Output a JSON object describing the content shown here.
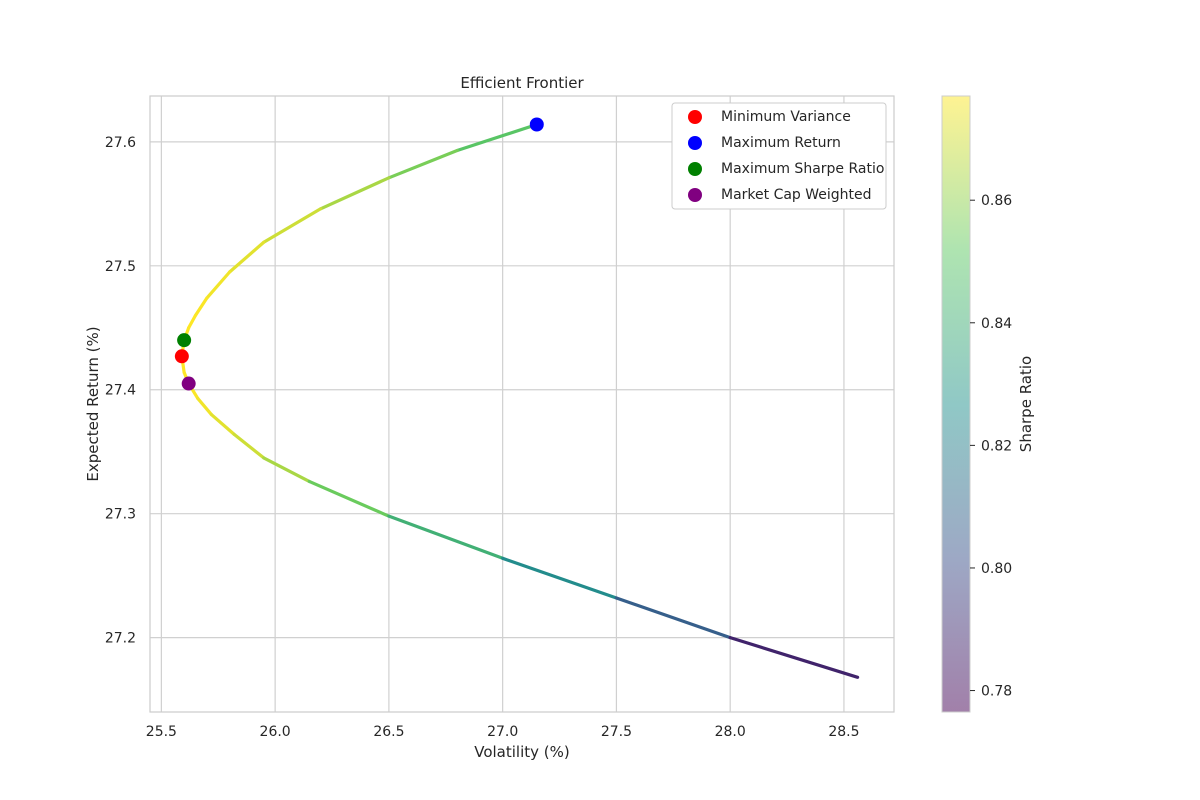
{
  "chart_data": {
    "type": "scatter",
    "title": "Efficient Frontier",
    "xlabel": "Volatility (%)",
    "ylabel": "Expected Return (%)",
    "xlim": [
      25.45,
      28.72
    ],
    "ylim": [
      27.14,
      27.637
    ],
    "xticks": [
      "25.5",
      "26.0",
      "26.5",
      "27.0",
      "27.5",
      "28.0",
      "28.5"
    ],
    "yticks": [
      "27.2",
      "27.3",
      "27.4",
      "27.5",
      "27.6"
    ],
    "grid": true,
    "legend_position": "top-right",
    "frontier": {
      "x": [
        27.15,
        26.8,
        26.5,
        26.2,
        25.95,
        25.8,
        25.7,
        25.65,
        25.62,
        25.6,
        25.59,
        25.6,
        25.62,
        25.66,
        25.72,
        25.82,
        25.95,
        26.15,
        26.5,
        27.0,
        27.5,
        28.0,
        28.56
      ],
      "y": [
        27.614,
        27.593,
        27.571,
        27.546,
        27.519,
        27.495,
        27.474,
        27.46,
        27.45,
        27.44,
        27.427,
        27.414,
        27.405,
        27.393,
        27.38,
        27.364,
        27.345,
        27.326,
        27.298,
        27.264,
        27.232,
        27.2,
        27.168
      ],
      "sharpe": [
        0.845,
        0.85,
        0.858,
        0.866,
        0.87,
        0.873,
        0.875,
        0.876,
        0.876,
        0.876,
        0.876,
        0.876,
        0.876,
        0.875,
        0.873,
        0.87,
        0.866,
        0.858,
        0.845,
        0.83,
        0.812,
        0.792,
        0.77
      ]
    },
    "points": [
      {
        "name": "Minimum Variance",
        "x": 25.59,
        "y": 27.427,
        "color": "#ff0000"
      },
      {
        "name": "Maximum Return",
        "x": 27.15,
        "y": 27.614,
        "color": "#0000ff"
      },
      {
        "name": "Maximum Sharpe Ratio",
        "x": 25.6,
        "y": 27.44,
        "color": "#008000"
      },
      {
        "name": "Market Cap Weighted",
        "x": 25.62,
        "y": 27.405,
        "color": "#800080"
      }
    ],
    "colorbar": {
      "label": "Sharpe Ratio",
      "range": [
        0.7765,
        0.877
      ],
      "ticks": [
        "0.78",
        "0.80",
        "0.82",
        "0.84",
        "0.86"
      ],
      "colormap": "viridis",
      "alpha": 0.5
    }
  }
}
